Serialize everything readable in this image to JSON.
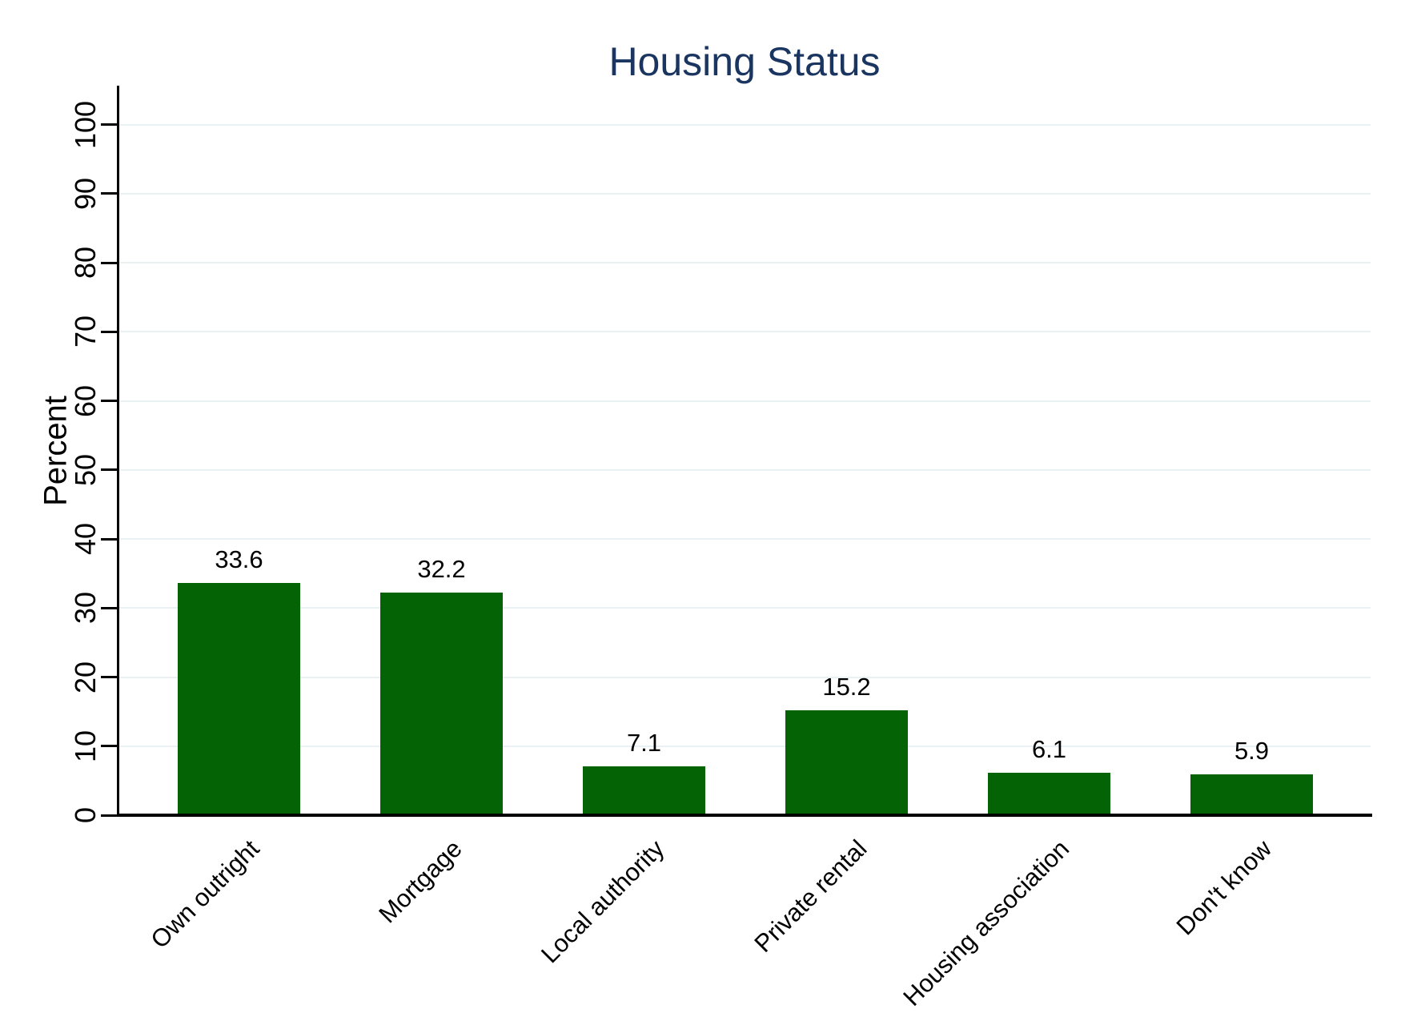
{
  "title": "Housing Status",
  "colors": {
    "title_text": "#1b3561",
    "bar_fill": "#046304",
    "gridline": "#e9f1f2",
    "axis": "#000000",
    "label_text": "#000000"
  },
  "chart_data": {
    "type": "bar",
    "title": "Housing Status",
    "xlabel": "",
    "ylabel": "Percent",
    "categories": [
      "Own outright",
      "Mortgage",
      "Local authority",
      "Private rental",
      "Housing association",
      "Don't know"
    ],
    "values": [
      33.6,
      32.2,
      7.1,
      15.2,
      6.1,
      5.9
    ],
    "value_labels": [
      "33.6",
      "32.2",
      "7.1",
      "15.2",
      "6.1",
      "5.9"
    ],
    "ylim": [
      0,
      100
    ],
    "yticks": [
      0,
      10,
      20,
      30,
      40,
      50,
      60,
      70,
      80,
      90,
      100
    ],
    "grid": true,
    "gridlines_at": [
      10,
      20,
      30,
      40,
      50,
      60,
      70,
      80,
      90,
      100
    ],
    "bar_color": "#046304",
    "legend_position": "none",
    "x_label_angle_deg": 45,
    "y_label_angle_deg": 90
  }
}
